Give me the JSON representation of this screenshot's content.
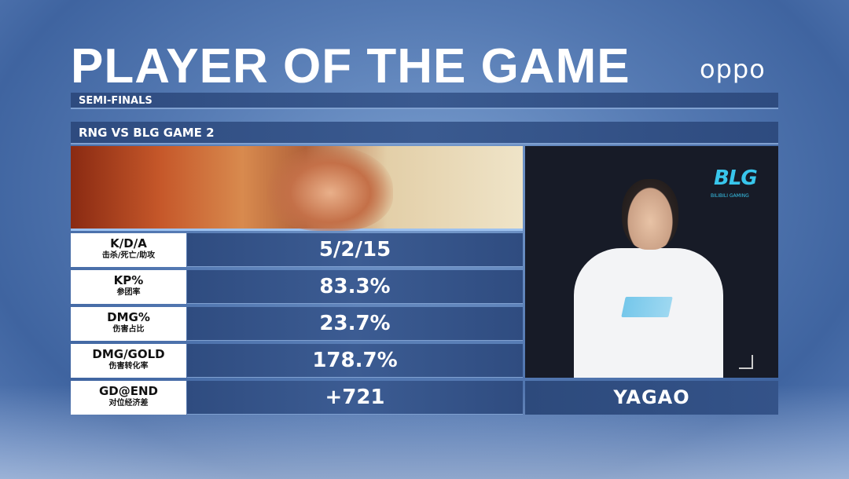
{
  "header": {
    "title": "PLAYER OF THE GAME",
    "sponsor": "oppo"
  },
  "stage": "SEMI-FINALS",
  "match": "RNG VS BLG  GAME 2",
  "stats": [
    {
      "label": "K/D/A",
      "label_cn": "击杀/死亡/助攻",
      "value": "5/2/15"
    },
    {
      "label": "KP%",
      "label_cn": "参团率",
      "value": "83.3%"
    },
    {
      "label": "DMG%",
      "label_cn": "伤害占比",
      "value": "23.7%"
    },
    {
      "label": "DMG/GOLD",
      "label_cn": "伤害转化率",
      "value": "178.7%"
    },
    {
      "label": "GD@END",
      "label_cn": "对位经济差",
      "value": "+721"
    }
  ],
  "player": {
    "name": "YAGAO",
    "team_logo": "BLG",
    "team_logo_sub": "BILIBILI GAMING"
  },
  "colors": {
    "accent": "#38c6ec",
    "panel": "#2f4c80"
  }
}
